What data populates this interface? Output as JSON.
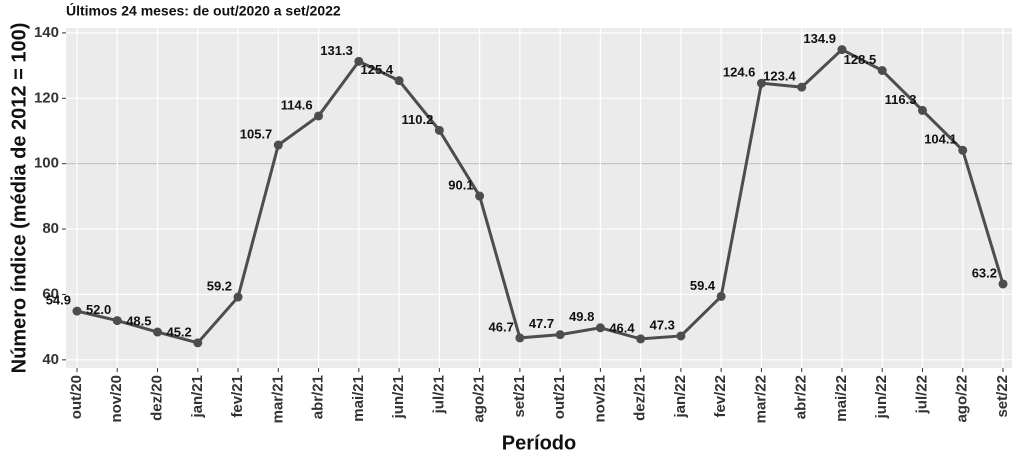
{
  "chart_data": {
    "type": "line",
    "title": "Últimos 24 meses: de out/2020 a set/2022",
    "x_label": "Período",
    "y_label": "Número índice (média de 2012 = 100)",
    "categories": [
      "out/20",
      "nov/20",
      "dez/20",
      "jan/21",
      "fev/21",
      "mar/21",
      "abr/21",
      "mai/21",
      "jun/21",
      "jul/21",
      "ago/21",
      "set/21",
      "out/21",
      "nov/21",
      "dez/21",
      "jan/22",
      "fev/22",
      "mar/22",
      "abr/22",
      "mai/22",
      "jun/22",
      "jul/22",
      "ago/22",
      "set/22"
    ],
    "series": [
      {
        "name": "Número índice",
        "color": "#4d4d4d",
        "values": [
          54.9,
          52.0,
          48.5,
          45.2,
          59.2,
          105.7,
          114.6,
          131.3,
          125.4,
          110.2,
          90.1,
          46.7,
          47.7,
          49.8,
          46.4,
          47.3,
          59.4,
          124.6,
          123.4,
          134.9,
          128.5,
          116.3,
          104.1,
          63.2
        ],
        "value_labels": [
          "54.9",
          "52.0",
          "48.5",
          "45.2",
          "59.2",
          "105.7",
          "114.6",
          "131.3",
          "125.4",
          "110.2",
          "90.1",
          "46.7",
          "47.7",
          "49.8",
          "46.4",
          "47.3",
          "59.4",
          "124.6",
          "123.4",
          "134.9",
          "128.5",
          "116.3",
          "104.1",
          "63.2"
        ]
      }
    ],
    "ylim": [
      37.5,
      141.5
    ],
    "yticks": [
      40,
      60,
      80,
      100,
      120,
      140
    ],
    "reference_line": 100,
    "grid": true
  }
}
